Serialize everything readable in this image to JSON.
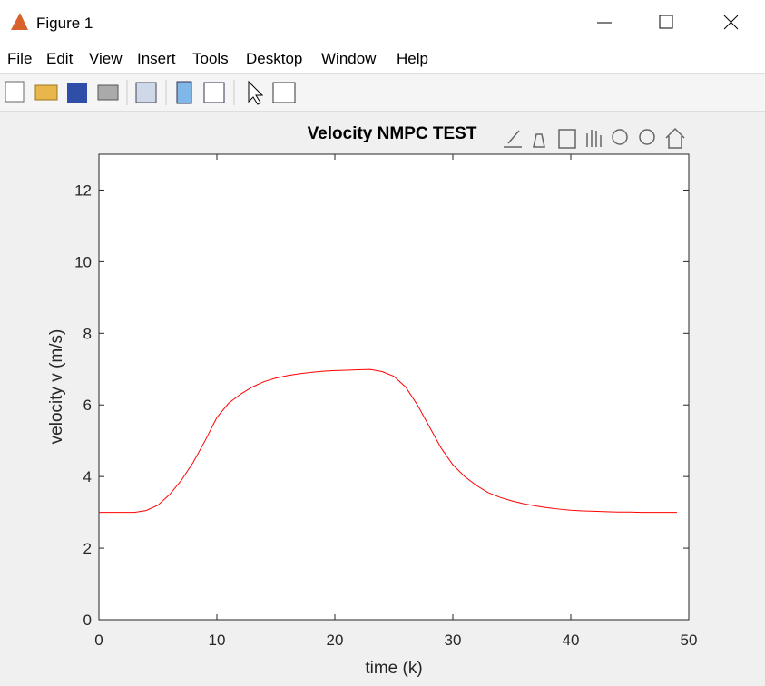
{
  "window": {
    "title": "Figure 1"
  },
  "menu": [
    "File",
    "Edit",
    "View",
    "Insert",
    "Tools",
    "Desktop",
    "Window",
    "Help"
  ],
  "chart_data": {
    "type": "line",
    "title": "Velocity  NMPC TEST",
    "x_label": "time (k)",
    "y_label": "velocity v (m/s)",
    "x": [
      0,
      1,
      2,
      3,
      4,
      5,
      6,
      7,
      8,
      9,
      10,
      11,
      12,
      13,
      14,
      15,
      16,
      17,
      18,
      19,
      20,
      21,
      22,
      23,
      24,
      25,
      26,
      27,
      28,
      29,
      30,
      31,
      32,
      33,
      34,
      35,
      36,
      37,
      38,
      39,
      40,
      41,
      42,
      43,
      44,
      45,
      46,
      47,
      48,
      49
    ],
    "series": [
      {
        "color": "#ff0000",
        "values": [
          3,
          3,
          3,
          3,
          3.05,
          3.2,
          3.5,
          3.9,
          4.4,
          5.0,
          5.65,
          6.05,
          6.3,
          6.5,
          6.65,
          6.75,
          6.82,
          6.87,
          6.91,
          6.94,
          6.96,
          6.97,
          6.98,
          6.99,
          6.93,
          6.8,
          6.5,
          6.0,
          5.4,
          4.8,
          4.33,
          4.0,
          3.75,
          3.55,
          3.42,
          3.32,
          3.24,
          3.18,
          3.13,
          3.09,
          3.06,
          3.04,
          3.03,
          3.02,
          3.01,
          3.01,
          3.0,
          3.0,
          3.0,
          3.0
        ]
      }
    ],
    "xlim": [
      0,
      50
    ],
    "ylim": [
      0,
      13
    ],
    "xticks": [
      0,
      10,
      20,
      30,
      40,
      50
    ],
    "yticks": [
      0,
      2,
      4,
      6,
      8,
      10,
      12
    ]
  }
}
